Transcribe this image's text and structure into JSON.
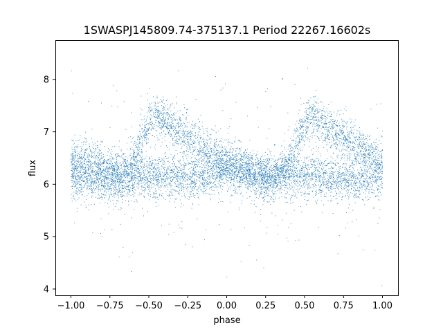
{
  "chart_data": {
    "type": "scatter",
    "title": "1SWASPJ145809.74-375137.1 Period 22267.16602s",
    "xlabel": "phase",
    "ylabel": "flux",
    "xlim": [
      -1.1,
      1.1
    ],
    "ylim": [
      3.88,
      8.75
    ],
    "xticks": [
      -1.0,
      -0.75,
      -0.5,
      -0.25,
      0.0,
      0.25,
      0.5,
      0.75,
      1.0
    ],
    "xtick_labels": [
      "−1.00",
      "−0.75",
      "−0.50",
      "−0.25",
      "0.00",
      "0.25",
      "0.50",
      "0.75",
      "1.00"
    ],
    "yticks": [
      4,
      5,
      6,
      7,
      8
    ],
    "ytick_labels": [
      "4",
      "5",
      "6",
      "7",
      "8"
    ],
    "grid": false,
    "legend": "none",
    "marker_color": "#1f77b4",
    "series": [
      {
        "profile_phase": [
          -1.0,
          -0.9,
          -0.8,
          -0.7,
          -0.62,
          -0.55,
          -0.5,
          -0.45,
          -0.4,
          -0.3,
          -0.2,
          -0.1,
          0.0,
          0.1,
          0.2,
          0.3,
          0.38,
          0.45,
          0.5,
          0.55,
          0.6,
          0.7,
          0.8,
          0.9,
          1.0
        ],
        "upper_branch_flux": [
          6.45,
          6.45,
          6.35,
          6.25,
          6.3,
          6.8,
          7.15,
          7.3,
          7.2,
          7.0,
          6.8,
          6.55,
          6.4,
          6.3,
          6.2,
          6.15,
          6.3,
          6.8,
          7.15,
          7.3,
          7.2,
          7.0,
          6.8,
          6.6,
          6.45
        ],
        "lower_branch_flux": [
          6.1,
          6.1,
          6.1,
          6.05,
          6.1,
          6.15,
          6.15,
          6.15,
          6.15,
          6.1,
          6.1,
          6.15,
          6.3,
          6.25,
          6.15,
          6.1,
          6.15,
          6.15,
          6.15,
          6.15,
          6.15,
          6.1,
          6.1,
          6.1,
          6.1
        ]
      }
    ]
  }
}
